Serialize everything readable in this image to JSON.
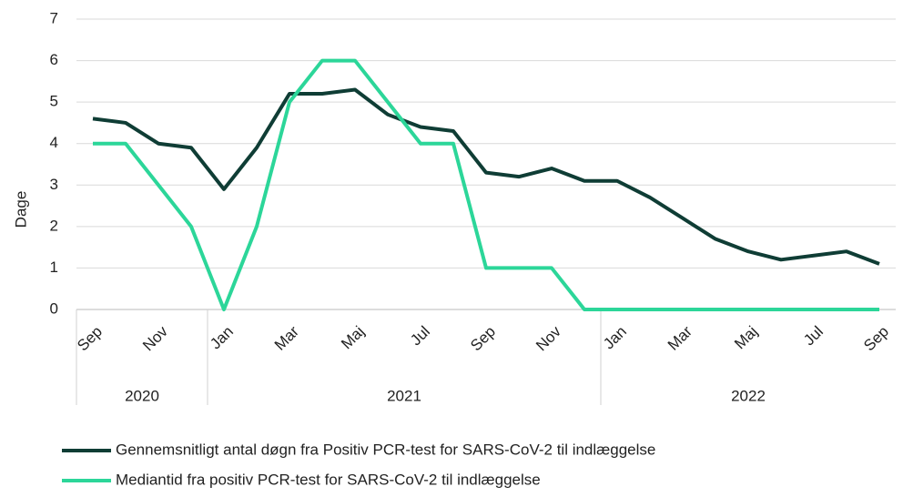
{
  "chart_data": {
    "type": "line",
    "y_label": "Dage",
    "categories": [
      "Sep",
      null,
      "Nov",
      null,
      "Jan",
      null,
      "Mar",
      null,
      "Maj",
      null,
      "Jul",
      null,
      "Sep",
      null,
      "Nov",
      null,
      "Jan",
      null,
      "Mar",
      null,
      "Maj",
      null,
      "Jul",
      null,
      "Sep"
    ],
    "x_groups": [
      {
        "label": "2020",
        "span": 4
      },
      {
        "label": "2021",
        "span": 12
      },
      {
        "label": "2022",
        "span": 9
      }
    ],
    "series": [
      {
        "name": "Gennemsnitligt antal døgn fra Positiv PCR-test for SARS-CoV-2 til indlæggelse",
        "color": "#0f3d35",
        "values": [
          4.6,
          4.5,
          4.0,
          3.9,
          2.9,
          3.9,
          5.2,
          5.2,
          5.3,
          4.7,
          4.4,
          4.3,
          3.3,
          3.2,
          3.4,
          3.1,
          3.1,
          2.7,
          2.2,
          1.7,
          1.4,
          1.2,
          1.3,
          1.4,
          1.1
        ]
      },
      {
        "name": "Mediantid fra positiv PCR-test for SARS-CoV-2 til indlæggelse",
        "color": "#2cd699",
        "values": [
          4,
          4,
          3,
          2,
          0,
          2,
          5,
          6,
          6,
          5,
          4,
          4,
          1,
          1,
          1,
          0,
          0,
          0,
          0,
          0,
          0,
          0,
          0,
          0,
          0
        ]
      }
    ],
    "ylim": [
      0,
      7
    ],
    "yticks": [
      0,
      1,
      2,
      3,
      4,
      5,
      6,
      7
    ],
    "grid": true
  }
}
